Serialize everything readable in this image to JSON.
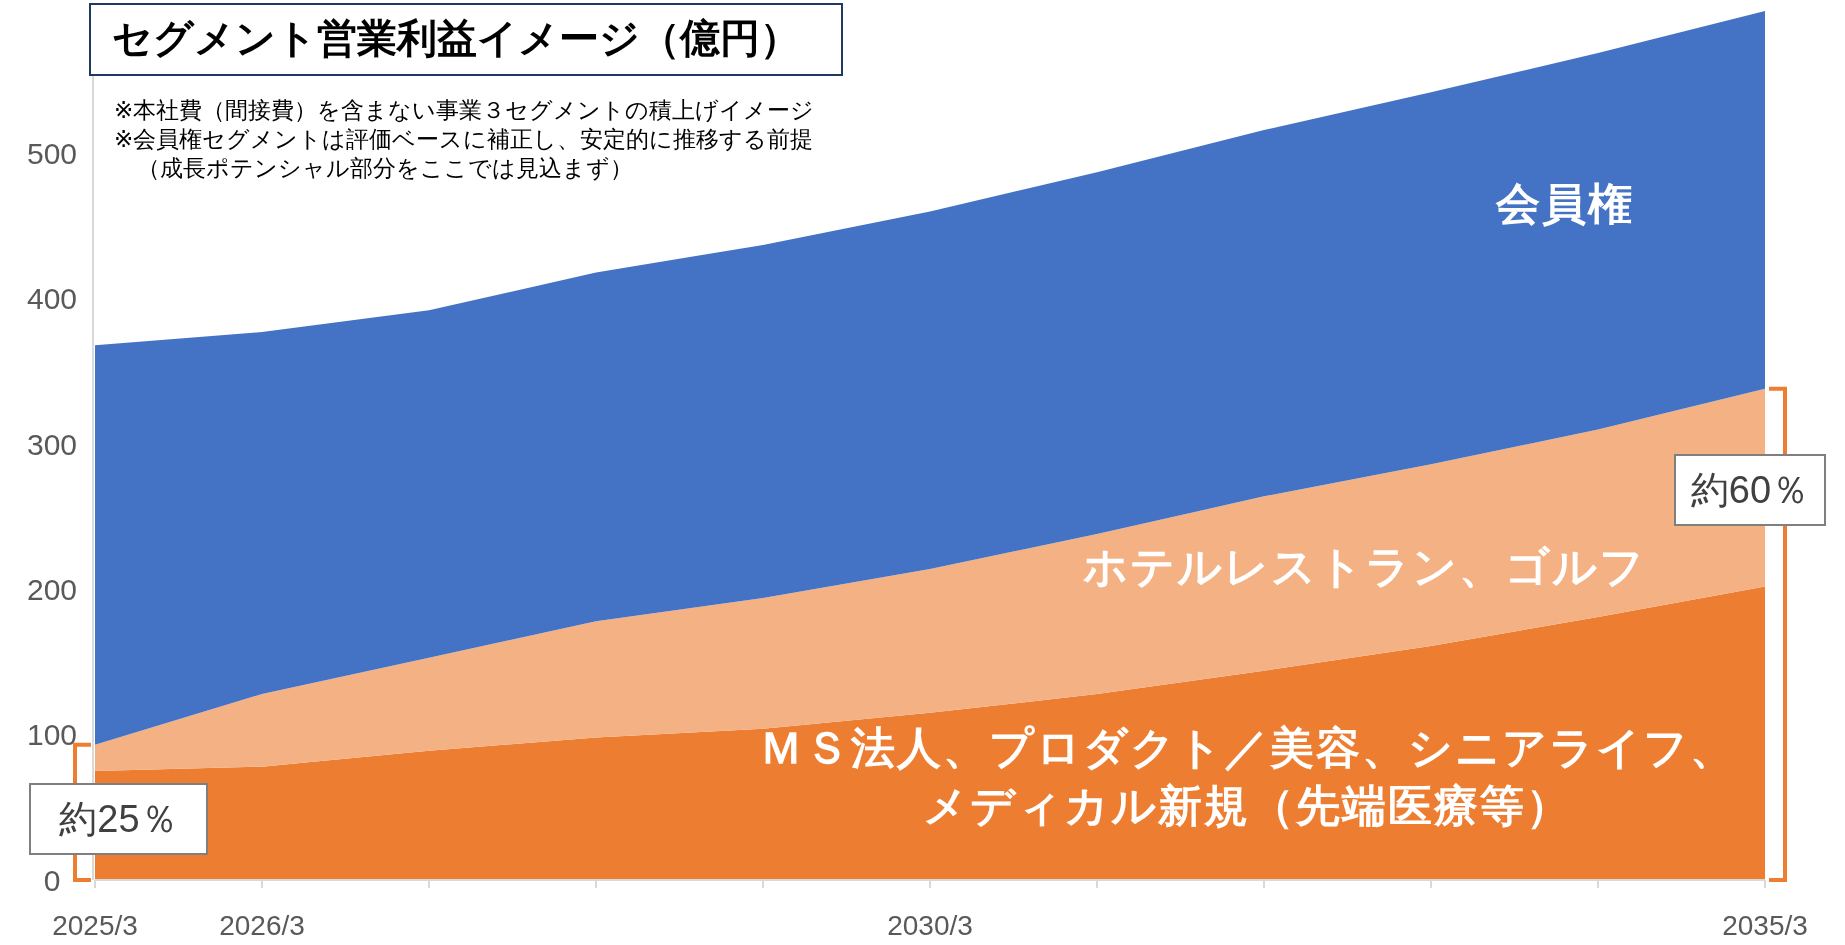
{
  "chart_data": {
    "type": "area",
    "stacked": true,
    "title": "セグメント営業利益イメージ（億円）",
    "categories": [
      "2025/3",
      "2026/3",
      null,
      null,
      null,
      "2030/3",
      null,
      null,
      null,
      null,
      "2035/3"
    ],
    "series": [
      {
        "name": "ＭＳ法人、プロダクト／美容、シニアライフ、メディカル新規（先端医療等）",
        "color": "#ed7d31",
        "values": [
          75,
          78,
          89,
          98,
          104,
          115,
          128,
          144,
          161,
          181,
          202
        ]
      },
      {
        "name": "ホテルレストラン、ゴルフ",
        "color": "#f4b183",
        "values": [
          18,
          50,
          64,
          80,
          90,
          99,
          110,
          120,
          125,
          129,
          136
        ]
      },
      {
        "name": "会員権",
        "color": "#4472c4",
        "values": [
          275,
          249,
          239,
          240,
          243,
          246,
          249,
          252,
          256,
          259,
          260
        ]
      }
    ],
    "ylim": [
      0,
      600
    ],
    "yticks": [
      0,
      100,
      200,
      300,
      400,
      500
    ],
    "annotations": [
      "※本社費（間接費）を含まない事業３セグメントの積上げイメージ",
      "※会員権セグメントは評価ベースに補正し、安定的に推移する前提",
      "（成長ポテンシャル部分をここでは見込まず）",
      "約25％",
      "約60％"
    ]
  }
}
